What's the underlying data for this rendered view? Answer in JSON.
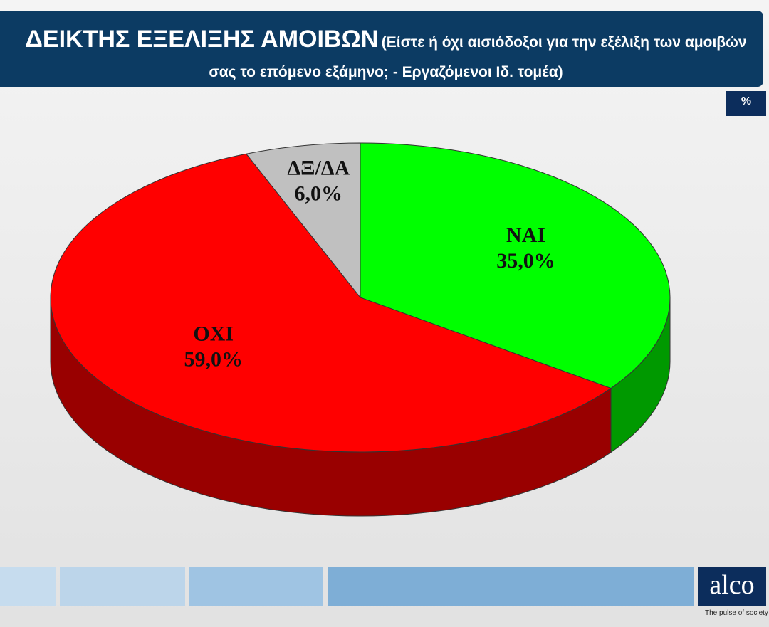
{
  "chart_data": {
    "type": "pie",
    "title": "ΔΕΙΚΤΗΣ ΕΞΕΛΙΞΗΣ ΑΜΟΙΒΩΝ",
    "subtitle": "(Είστε ή όχι αισιόδοξοι για την εξέλιξη των αμοιβών σας το επόμενο εξάμηνο; - Εργαζόμενοι Ιδ. τομέα)",
    "unit": "%",
    "categories": [
      "ΝΑΙ",
      "ΟΧΙ",
      "ΔΞ/ΔΑ"
    ],
    "values": [
      35,
      59,
      6
    ],
    "value_labels": [
      "35,0%",
      "59,0%",
      "6,0%"
    ],
    "colors": [
      "#00ff00",
      "#ff0000",
      "#c0c0c0"
    ]
  },
  "footer": {
    "logo": "alco",
    "tagline": "The pulse of society"
  }
}
